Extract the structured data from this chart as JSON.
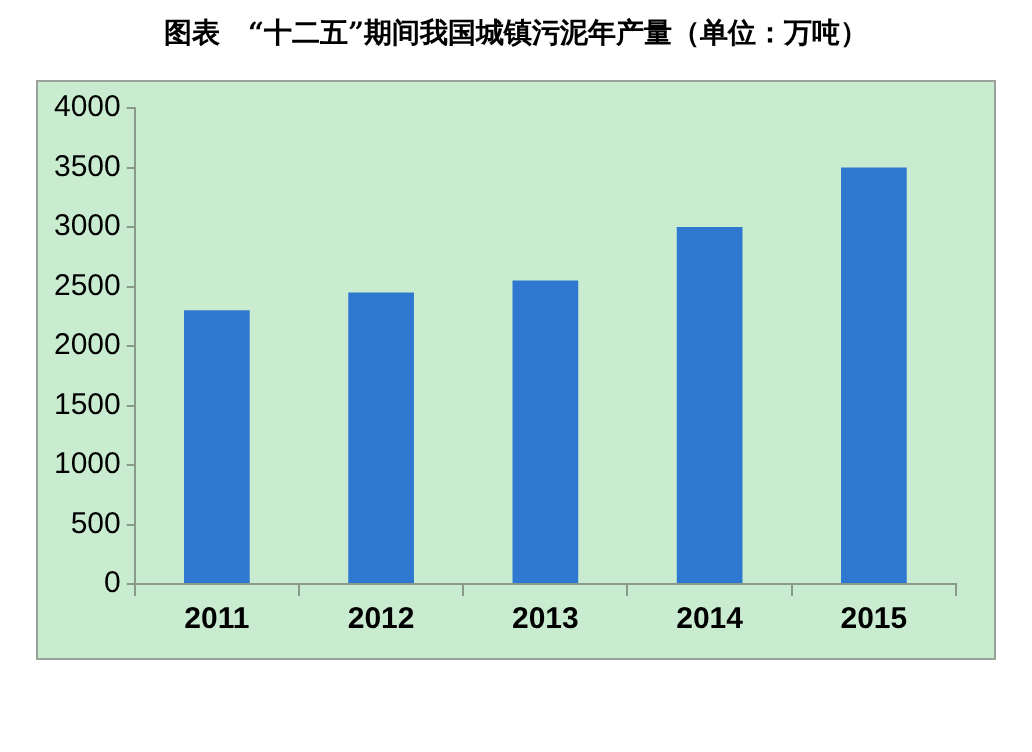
{
  "chart_data": {
    "type": "bar",
    "title": "图表　“十二五”期间我国城镇污泥年产量（单位：万吨）",
    "categories": [
      "2011",
      "2012",
      "2013",
      "2014",
      "2015"
    ],
    "values": [
      2300,
      2450,
      2550,
      3000,
      3500
    ],
    "color": "#2f78d0",
    "ylim": [
      0,
      4000
    ],
    "yticks": [
      0,
      500,
      1000,
      1500,
      2000,
      2500,
      3000,
      3500,
      4000
    ],
    "grid": false
  }
}
